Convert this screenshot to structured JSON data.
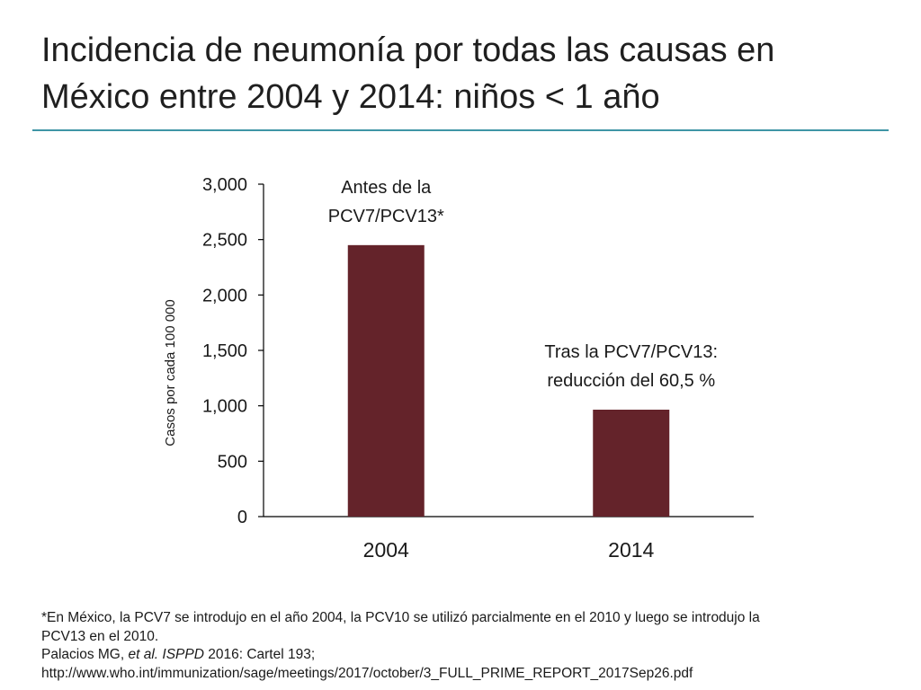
{
  "slide": {
    "title_line1": "Incidencia de neumonía por todas las causas en",
    "title_line2": "México entre 2004 y 2014: niños < 1 año",
    "accent_color": "#3f95a6"
  },
  "chart_data": {
    "type": "bar",
    "categories": [
      "2004",
      "2014"
    ],
    "values": [
      2450,
      965
    ],
    "ylabel": "Casos por cada 100 000",
    "ylim": [
      0,
      3000
    ],
    "yticks": [
      0,
      500,
      1000,
      1500,
      2000,
      2500,
      3000
    ],
    "ytick_labels": [
      "0",
      "500",
      "1,000",
      "1,500",
      "2,000",
      "2,500",
      "3,000"
    ],
    "bar_color": "#64232a",
    "grid": false,
    "annotations": [
      {
        "lines": [
          "Antes de la",
          "PCV7/PCV13*"
        ],
        "category": "2004"
      },
      {
        "lines": [
          "Tras la PCV7/PCV13:",
          "reducción del 60,5 %"
        ],
        "category": "2014"
      }
    ]
  },
  "footnote": {
    "line1": "*En México, la PCV7 se introdujo en el año 2004, la PCV10 se utilizó parcialmente en el 2010 y luego se introdujo la",
    "line2": "PCV13 en el 2010.",
    "ref_author": "Palacios MG, ",
    "ref_italic1": "et al.",
    "ref_sep": " ",
    "ref_italic2": "ISPPD",
    "ref_rest": " 2016: Cartel 193;",
    "url": "http://www.who.int/immunization/sage/meetings/2017/october/3_FULL_PRIME_REPORT_2017Sep26.pdf"
  }
}
